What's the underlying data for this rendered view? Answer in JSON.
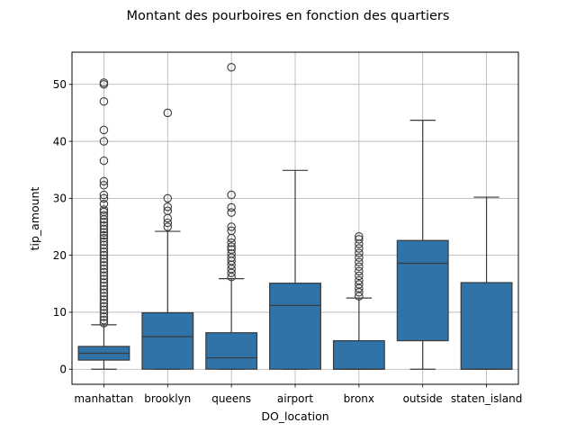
{
  "chart_data": {
    "type": "box",
    "title": "Montant des pourboires en fonction des quartiers",
    "xlabel": "DO_location",
    "ylabel": "tip_amount",
    "ylim": [
      -2.65,
      55.65
    ],
    "yticks": [
      0,
      10,
      20,
      30,
      40,
      50
    ],
    "grid": true,
    "box_color": "#2f73a8",
    "categories": [
      "manhattan",
      "brooklyn",
      "queens",
      "airport",
      "bronx",
      "outside",
      "staten_island"
    ],
    "boxes": [
      {
        "category": "manhattan",
        "whisker_low": 0,
        "q1": 1.6,
        "median": 2.8,
        "q3": 4.0,
        "whisker_high": 7.8,
        "outliers": [
          50.3,
          50.0,
          47.0,
          42.0,
          40.0,
          36.6,
          33.0,
          32.3,
          30.6,
          30.0,
          29.0,
          28.0,
          27.6,
          27.0,
          26.3,
          25.8,
          25.2,
          24.6,
          24.0,
          23.5,
          23.0,
          22.4,
          21.8,
          21.2,
          20.6,
          20.0,
          19.4,
          18.8,
          18.2,
          17.6,
          17.0,
          16.4,
          15.8,
          15.2,
          14.6,
          14.0,
          13.4,
          12.8,
          12.2,
          11.6,
          11.0,
          10.4,
          9.8,
          9.2,
          8.6,
          8.1
        ]
      },
      {
        "category": "brooklyn",
        "whisker_low": 0,
        "q1": 0,
        "median": 5.7,
        "q3": 9.9,
        "whisker_high": 24.2,
        "outliers": [
          45.0,
          30.0,
          28.5,
          27.8,
          26.5,
          25.7,
          25.0
        ]
      },
      {
        "category": "queens",
        "whisker_low": 0,
        "q1": 0,
        "median": 2.0,
        "q3": 6.4,
        "whisker_high": 15.9,
        "outliers": [
          53.0,
          30.6,
          28.4,
          27.5,
          25.0,
          24.3,
          23.0,
          22.2,
          21.5,
          21.0,
          20.3,
          19.6,
          19.0,
          18.3,
          17.6,
          16.9,
          16.2
        ]
      },
      {
        "category": "airport",
        "whisker_low": 0,
        "q1": 0,
        "median": 11.2,
        "q3": 15.1,
        "whisker_high": 34.9,
        "outliers": []
      },
      {
        "category": "bronx",
        "whisker_low": 0,
        "q1": 0,
        "median": 0,
        "q3": 5.0,
        "whisker_high": 12.5,
        "outliers": [
          23.3,
          22.8,
          22.0,
          21.2,
          20.4,
          19.6,
          18.8,
          18.0,
          17.2,
          16.4,
          15.6,
          14.9,
          14.2,
          13.5,
          12.8
        ]
      },
      {
        "category": "outside",
        "whisker_low": 0,
        "q1": 5.0,
        "median": 18.6,
        "q3": 22.6,
        "whisker_high": 43.7,
        "outliers": []
      },
      {
        "category": "staten_island",
        "whisker_low": 0,
        "q1": 0,
        "median": 0,
        "q3": 15.2,
        "whisker_high": 30.2,
        "outliers": []
      }
    ]
  }
}
